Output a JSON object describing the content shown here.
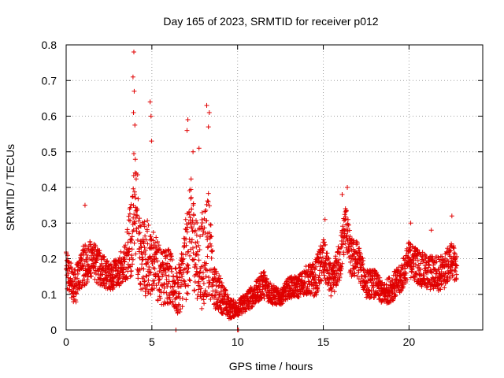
{
  "chart_data": {
    "type": "scatter",
    "title": "Day 165 of 2023, SRMTID for receiver p012",
    "xlabel": "GPS time / hours",
    "ylabel": "SRMTID / TECUs",
    "xlim": [
      0,
      24.3
    ],
    "ylim": [
      0,
      0.8
    ],
    "xticks": [
      0,
      5,
      10,
      15,
      20
    ],
    "xtick_labels": [
      "0",
      "5",
      "10",
      "15",
      "20"
    ],
    "yticks": [
      0,
      0.1,
      0.2,
      0.3,
      0.4,
      0.5,
      0.6,
      0.7,
      0.8
    ],
    "ytick_labels": [
      "0",
      "0.1",
      "0.2",
      "0.3",
      "0.4",
      "0.5",
      "0.6",
      "0.7",
      "0.8"
    ],
    "grid": true,
    "legend": "none",
    "marker": "plus",
    "colors": {
      "series": "#e00000",
      "grid": "#a0a0a0",
      "axis": "#000000"
    },
    "series": [
      {
        "name": "SRMTID",
        "x_start": 0.0,
        "x_step": 0.0083,
        "y_envelope": {
          "hours": [
            0,
            0.5,
            1,
            1.5,
            2,
            2.5,
            3,
            3.5,
            3.9,
            4.0,
            4.3,
            5.0,
            5.5,
            6.0,
            6.5,
            7.0,
            7.3,
            7.7,
            8.0,
            8.3,
            8.6,
            9.0,
            9.5,
            10.0,
            10.5,
            11.0,
            11.5,
            12.0,
            12.5,
            13.0,
            13.5,
            14.0,
            14.5,
            15.0,
            15.5,
            16.0,
            16.3,
            16.6,
            17.0,
            17.5,
            18.0,
            18.5,
            19.0,
            19.5,
            20.0,
            20.5,
            21.0,
            21.5,
            22.0,
            22.5,
            22.8
          ],
          "median": [
            0.17,
            0.12,
            0.18,
            0.2,
            0.17,
            0.15,
            0.16,
            0.2,
            0.28,
            0.4,
            0.2,
            0.2,
            0.15,
            0.15,
            0.1,
            0.2,
            0.28,
            0.18,
            0.2,
            0.25,
            0.12,
            0.1,
            0.06,
            0.06,
            0.08,
            0.1,
            0.13,
            0.1,
            0.09,
            0.12,
            0.12,
            0.14,
            0.14,
            0.2,
            0.13,
            0.2,
            0.3,
            0.2,
            0.2,
            0.13,
            0.13,
            0.1,
            0.12,
            0.14,
            0.2,
            0.18,
            0.16,
            0.16,
            0.16,
            0.2,
            0.17
          ],
          "spread": [
            0.05,
            0.05,
            0.06,
            0.05,
            0.05,
            0.04,
            0.04,
            0.06,
            0.15,
            0.2,
            0.12,
            0.1,
            0.08,
            0.08,
            0.06,
            0.12,
            0.15,
            0.1,
            0.15,
            0.15,
            0.06,
            0.05,
            0.03,
            0.02,
            0.03,
            0.03,
            0.04,
            0.03,
            0.02,
            0.03,
            0.03,
            0.04,
            0.05,
            0.06,
            0.04,
            0.06,
            0.06,
            0.06,
            0.05,
            0.04,
            0.04,
            0.03,
            0.04,
            0.04,
            0.05,
            0.05,
            0.05,
            0.05,
            0.05,
            0.05,
            0.04
          ]
        },
        "peaks": [
          {
            "x": 3.95,
            "y": 0.78
          },
          {
            "x": 3.9,
            "y": 0.71
          },
          {
            "x": 3.97,
            "y": 0.67
          },
          {
            "x": 3.93,
            "y": 0.61
          },
          {
            "x": 4.9,
            "y": 0.64
          },
          {
            "x": 4.95,
            "y": 0.6
          },
          {
            "x": 4.98,
            "y": 0.53
          },
          {
            "x": 7.1,
            "y": 0.59
          },
          {
            "x": 7.05,
            "y": 0.56
          },
          {
            "x": 8.2,
            "y": 0.63
          },
          {
            "x": 8.35,
            "y": 0.61
          },
          {
            "x": 8.3,
            "y": 0.57
          },
          {
            "x": 7.75,
            "y": 0.51
          },
          {
            "x": 7.4,
            "y": 0.5
          },
          {
            "x": 16.4,
            "y": 0.4
          },
          {
            "x": 16.1,
            "y": 0.38
          },
          {
            "x": 15.1,
            "y": 0.31
          },
          {
            "x": 1.1,
            "y": 0.35
          },
          {
            "x": 21.3,
            "y": 0.28
          },
          {
            "x": 22.5,
            "y": 0.32
          },
          {
            "x": 20.1,
            "y": 0.3
          },
          {
            "x": 6.4,
            "y": 0.0
          },
          {
            "x": 10.0,
            "y": 0.0
          },
          {
            "x": 10.05,
            "y": 0.0
          }
        ]
      }
    ]
  }
}
